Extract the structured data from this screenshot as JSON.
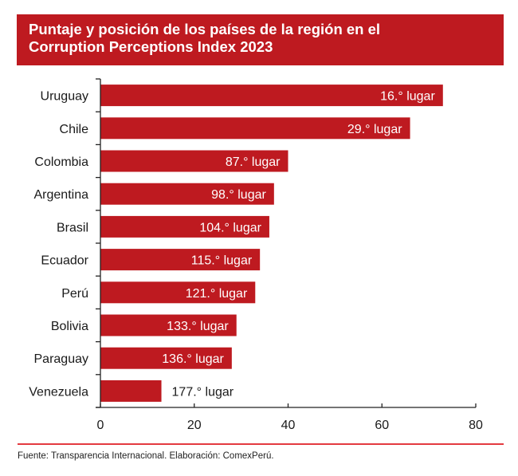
{
  "title": "Puntaje y posición de los países de la región en el Corruption Perceptions Index 2023",
  "title_lines": [
    "Puntaje y posición de los países de la región en el",
    "Corruption Perceptions Index 2023"
  ],
  "footer": "Fuente: Transparencia Internacional. Elaboración: ComexPerú.",
  "colors": {
    "bar": "#BE1A20",
    "banner": "#BE1A20",
    "rule": "#E33A40",
    "axis": "#222222"
  },
  "chart_data": {
    "type": "bar",
    "orientation": "horizontal",
    "title": "Puntaje y posición de los países de la región en el Corruption Perceptions Index 2023",
    "xlabel": "",
    "ylabel": "",
    "xlim": [
      0,
      80
    ],
    "xticks": [
      0,
      20,
      40,
      60,
      80
    ],
    "grid": false,
    "categories": [
      "Uruguay",
      "Chile",
      "Colombia",
      "Argentina",
      "Brasil",
      "Ecuador",
      "Perú",
      "Bolivia",
      "Paraguay",
      "Venezuela"
    ],
    "values": [
      73,
      66,
      40,
      37,
      36,
      34,
      33,
      29,
      28,
      13
    ],
    "data_labels": [
      "16.° lugar",
      "29.° lugar",
      "87.° lugar",
      "98.° lugar",
      "104.° lugar",
      "115.° lugar",
      "121.° lugar",
      "133.° lugar",
      "136.° lugar",
      "177.° lugar"
    ]
  }
}
